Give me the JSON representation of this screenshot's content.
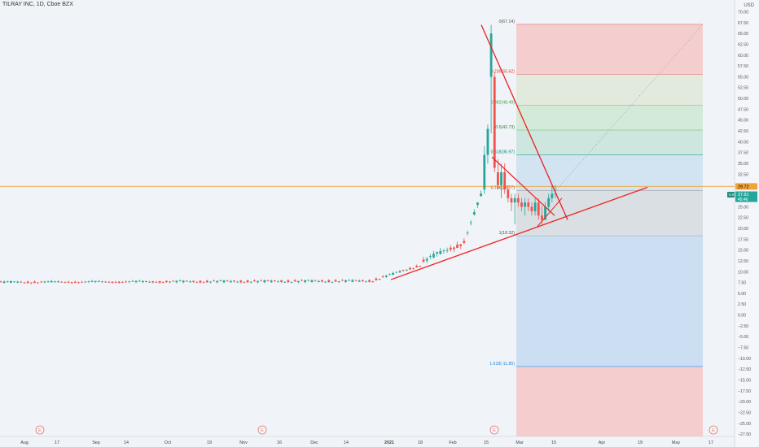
{
  "header": {
    "title": "TILRAY INC, 1D, Cboe BZX",
    "unit": "USD"
  },
  "chart_data": {
    "type": "candlestick",
    "symbol": "TLRY",
    "ylim": [
      -28,
      72
    ],
    "y_ticks": [
      70,
      67.5,
      65,
      62.5,
      60,
      57.5,
      55,
      52.5,
      50,
      47.5,
      45,
      42.5,
      40,
      37.5,
      35,
      32.5,
      30,
      27.5,
      25,
      22.5,
      20,
      17.5,
      15,
      12.5,
      10,
      7.5,
      5,
      2.5,
      0,
      -2.5,
      -5,
      -7.5,
      -10,
      -12.5,
      -15,
      -17.5,
      -20,
      -22.5,
      -25,
      -27.5
    ],
    "y_tick_labels": [
      "70.00",
      "67.50",
      "65.00",
      "62.50",
      "60.00",
      "57.50",
      "55.00",
      "52.50",
      "50.00",
      "47.50",
      "45.00",
      "42.50",
      "40.00",
      "37.50",
      "35.00",
      "32.50",
      "30.00",
      "27.50",
      "25.00",
      "22.50",
      "20.00",
      "17.50",
      "15.00",
      "12.50",
      "10.00",
      "7.50",
      "5.00",
      "2.50",
      "0.00",
      "−2.50",
      "−5.00",
      "−7.50",
      "−10.00",
      "−12.50",
      "−15.00",
      "−17.50",
      "−20.00",
      "−22.50",
      "−25.00",
      "−27.50"
    ],
    "x_labels": [
      "Aug",
      "17",
      "Sep",
      "14",
      "Oct",
      "19",
      "Nov",
      "16",
      "Dec",
      "14",
      "2021",
      "18",
      "Feb",
      "15",
      "Mar",
      "15",
      "Apr",
      "19",
      "May",
      "17"
    ],
    "x_label_bold": [
      "2021"
    ],
    "earnings_markers": [
      "E",
      "E",
      "E",
      "E"
    ],
    "current_price": {
      "symbol_tag": "TLRY",
      "price": "27.81",
      "countdown": "45:46",
      "value": 27.81
    },
    "horizontal_line": {
      "label": "29.72",
      "value": 29.72
    },
    "price_segments": [
      {
        "n": 110,
        "start": 7.6,
        "end": 7.9,
        "noise": 0.45
      },
      {
        "n": 15,
        "start": 8.0,
        "end": 11.5,
        "noise": 0.5
      },
      {
        "n": 12,
        "start": 12.5,
        "end": 16.5,
        "noise": 1.2
      },
      {
        "n": 6,
        "start": 17.0,
        "end": 27.5,
        "noise": 1.2
      }
    ],
    "late_candles": [
      {
        "o": 29,
        "h": 39,
        "l": 28,
        "c": 37
      },
      {
        "o": 37,
        "h": 44,
        "l": 35,
        "c": 43
      },
      {
        "o": 55,
        "h": 67,
        "l": 42,
        "c": 65
      },
      {
        "o": 55,
        "h": 56,
        "l": 33,
        "c": 34
      },
      {
        "o": 33,
        "h": 36,
        "l": 29,
        "c": 30
      },
      {
        "o": 30,
        "h": 35,
        "l": 27,
        "c": 33
      },
      {
        "o": 33,
        "h": 35,
        "l": 28,
        "c": 29
      },
      {
        "o": 29,
        "h": 30,
        "l": 26,
        "c": 27
      },
      {
        "o": 27,
        "h": 28,
        "l": 24,
        "c": 26
      },
      {
        "o": 26,
        "h": 28,
        "l": 21,
        "c": 27
      },
      {
        "o": 27,
        "h": 28,
        "l": 25,
        "c": 26
      },
      {
        "o": 26,
        "h": 27,
        "l": 24,
        "c": 25
      },
      {
        "o": 25,
        "h": 27,
        "l": 23,
        "c": 26
      },
      {
        "o": 26,
        "h": 27,
        "l": 24,
        "c": 25
      },
      {
        "o": 25,
        "h": 26,
        "l": 23,
        "c": 24
      },
      {
        "o": 24,
        "h": 27,
        "l": 23,
        "c": 26
      },
      {
        "o": 26,
        "h": 27,
        "l": 22,
        "c": 23
      },
      {
        "o": 23,
        "h": 25,
        "l": 21,
        "c": 22
      },
      {
        "o": 22,
        "h": 26,
        "l": 22,
        "c": 25
      },
      {
        "o": 25,
        "h": 28,
        "l": 24,
        "c": 27
      },
      {
        "o": 27,
        "h": 30,
        "l": 26,
        "c": 28
      },
      {
        "o": 28,
        "h": 30,
        "l": 27,
        "c": 28
      }
    ],
    "fib_levels": [
      {
        "ratio": 0,
        "label": "0(67.14)",
        "value": 67.14
      },
      {
        "ratio": 0.236,
        "label": "0.236(55.62)",
        "value": 55.62
      },
      {
        "ratio": 0.382,
        "label": "0.382(48.49)",
        "value": 48.49
      },
      {
        "ratio": 0.5,
        "label": "0.5(42.73)",
        "value": 42.73
      },
      {
        "ratio": 0.618,
        "label": "0.618(36.97)",
        "value": 36.97
      },
      {
        "ratio": 0.786,
        "label": "0.786(28.77)",
        "value": 28.77
      },
      {
        "ratio": 1,
        "label": "1(18.32)",
        "value": 18.32
      },
      {
        "ratio": 1.618,
        "label": "1.618(-11.85)",
        "value": -11.85
      }
    ],
    "colors": {
      "up": "#26a69a",
      "down": "#ef5350",
      "trend": "#ef2020",
      "hline": "#f2a33a",
      "blue": "#2196f3"
    }
  }
}
